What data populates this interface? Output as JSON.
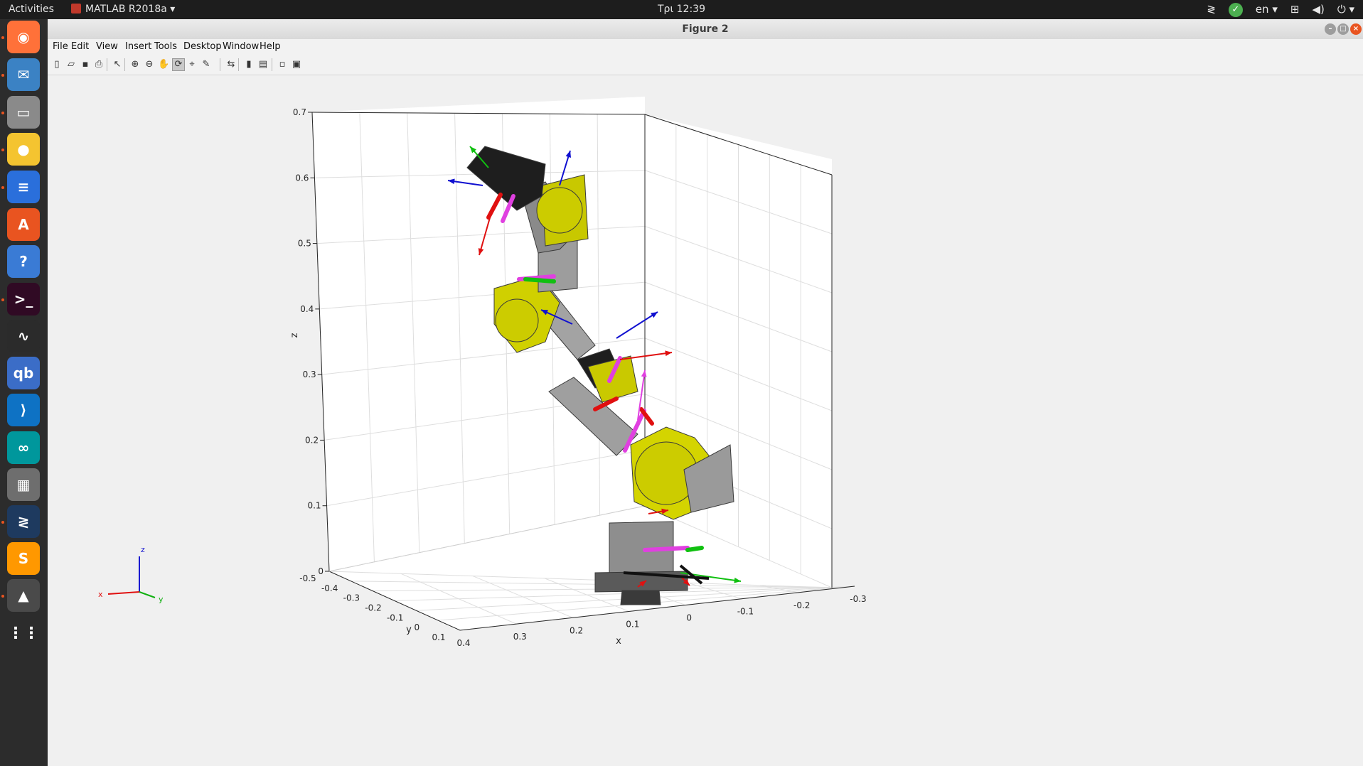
{
  "topbar": {
    "activities": "Activities",
    "app_name": "MATLAB R2018a",
    "clock": "Τρι 12:39",
    "language": "en"
  },
  "dock": {
    "items": [
      {
        "name": "firefox-icon",
        "color": "#ff7139",
        "glyph": "◉"
      },
      {
        "name": "thunderbird-icon",
        "color": "#3b82c4",
        "glyph": "✉"
      },
      {
        "name": "files-icon",
        "color": "#8a8a8a",
        "glyph": "▭"
      },
      {
        "name": "rhythmbox-icon",
        "color": "#f4c430",
        "glyph": "●"
      },
      {
        "name": "writer-icon",
        "color": "#2a6fdb",
        "glyph": "≡"
      },
      {
        "name": "software-center-icon",
        "color": "#e95420",
        "glyph": "A"
      },
      {
        "name": "help-icon",
        "color": "#3a7bd5",
        "glyph": "?"
      },
      {
        "name": "terminal-icon",
        "color": "#300a24",
        "glyph": ">_"
      },
      {
        "name": "system-monitor-icon",
        "color": "#2b2b2b",
        "glyph": "∿"
      },
      {
        "name": "qbittorrent-icon",
        "color": "#3b6dc7",
        "glyph": "qb"
      },
      {
        "name": "vscode-icon",
        "color": "#0e72c4",
        "glyph": "⟩"
      },
      {
        "name": "arduino-icon",
        "color": "#00979c",
        "glyph": "∞"
      },
      {
        "name": "calculator-icon",
        "color": "#6e6e6e",
        "glyph": "▦"
      },
      {
        "name": "anydesk-icon",
        "color": "#1e3a5f",
        "glyph": "≷"
      },
      {
        "name": "sublime-icon",
        "color": "#ff9800",
        "glyph": "S"
      },
      {
        "name": "matlab-icon",
        "color": "#4a4a4a",
        "glyph": "▲"
      },
      {
        "name": "show-apps-icon",
        "color": "#2c2c2c",
        "glyph": "⋮⋮"
      }
    ]
  },
  "window": {
    "title": "Figure 2",
    "menus": [
      "File",
      "Edit",
      "View",
      "Insert",
      "Tools",
      "Desktop",
      "Window",
      "Help"
    ],
    "toolbar_icons": [
      "new-figure-icon",
      "open-file-icon",
      "save-icon",
      "print-icon",
      "edit-plot-icon",
      "zoom-in-icon",
      "zoom-out-icon",
      "pan-icon",
      "rotate-3d-icon",
      "data-cursor-icon",
      "brush-icon",
      "link-plot-icon",
      "colorbar-icon",
      "legend-icon",
      "hide-plot-tools-icon",
      "show-plot-tools-icon"
    ]
  },
  "chart_data": {
    "type": "3d-scene",
    "title": "",
    "xlabel": "x",
    "ylabel": "y",
    "zlabel": "z",
    "x_ticks": [
      "0.4",
      "0.3",
      "0.2",
      "0.1",
      "0",
      "-0.1",
      "-0.2",
      "-0.3"
    ],
    "y_ticks": [
      "-0.5",
      "-0.4",
      "-0.3",
      "-0.2",
      "-0.1",
      "0",
      "0.1"
    ],
    "z_ticks": [
      "0",
      "0.1",
      "0.2",
      "0.3",
      "0.4",
      "0.5",
      "0.6",
      "0.7"
    ],
    "xlim": [
      -0.3,
      0.4
    ],
    "ylim": [
      -0.5,
      0.1
    ],
    "zlim": [
      0,
      0.7
    ],
    "grid": true,
    "triad_labels": {
      "x": "x",
      "y": "y",
      "z": "z"
    },
    "colors": {
      "link_gray": "#9a9a9a",
      "bracket_yellow": "#d4d400",
      "servo_black": "#1e1e1e",
      "x_axis": "#e01010",
      "y_axis": "#10c010",
      "z_axis": "#1010d0",
      "joint_magenta": "#e040e0"
    }
  }
}
